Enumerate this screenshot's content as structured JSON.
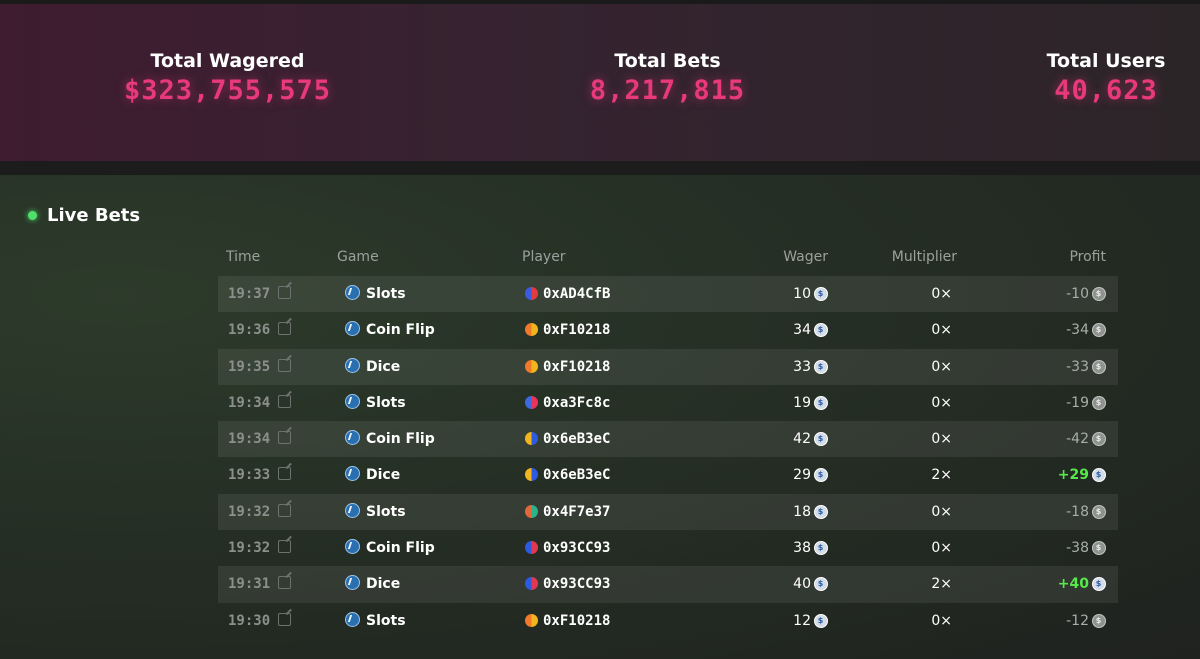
{
  "stats": {
    "total_wagered_label": "Total Wagered",
    "total_wagered_value": "$323,755,575",
    "total_bets_label": "Total Bets",
    "total_bets_value": "8,217,815",
    "total_users_label": "Total Users",
    "total_users_value": "40,623"
  },
  "live_bets": {
    "title": "Live Bets",
    "columns": {
      "time": "Time",
      "game": "Game",
      "player": "Player",
      "wager": "Wager",
      "multiplier": "Multiplier",
      "profit": "Profit"
    },
    "rows": [
      {
        "time": "19:37",
        "game": "Slots",
        "player": "0xAD4CfB",
        "wager": "10",
        "multiplier": "0×",
        "profit": "-10",
        "win": false,
        "avatar": [
          "#e23b3b",
          "#3b5be2"
        ]
      },
      {
        "time": "19:36",
        "game": "Coin Flip",
        "player": "0xF10218",
        "wager": "34",
        "multiplier": "0×",
        "profit": "-34",
        "win": false,
        "avatar": [
          "#f2b51e",
          "#f07a2a"
        ]
      },
      {
        "time": "19:35",
        "game": "Dice",
        "player": "0xF10218",
        "wager": "33",
        "multiplier": "0×",
        "profit": "-33",
        "win": false,
        "avatar": [
          "#f2b51e",
          "#f07a2a"
        ]
      },
      {
        "time": "19:34",
        "game": "Slots",
        "player": "0xa3Fc8c",
        "wager": "19",
        "multiplier": "0×",
        "profit": "-19",
        "win": false,
        "avatar": [
          "#e8345a",
          "#3b6ae2"
        ]
      },
      {
        "time": "19:34",
        "game": "Coin Flip",
        "player": "0x6eB3eC",
        "wager": "42",
        "multiplier": "0×",
        "profit": "-42",
        "win": false,
        "avatar": [
          "#2c5be0",
          "#f2b51e"
        ]
      },
      {
        "time": "19:33",
        "game": "Dice",
        "player": "0x6eB3eC",
        "wager": "29",
        "multiplier": "2×",
        "profit": "+29",
        "win": true,
        "avatar": [
          "#2c5be0",
          "#f2b51e"
        ]
      },
      {
        "time": "19:32",
        "game": "Slots",
        "player": "0x4F7e37",
        "wager": "18",
        "multiplier": "0×",
        "profit": "-18",
        "win": false,
        "avatar": [
          "#2bb38a",
          "#e2683b"
        ]
      },
      {
        "time": "19:32",
        "game": "Coin Flip",
        "player": "0x93CC93",
        "wager": "38",
        "multiplier": "0×",
        "profit": "-38",
        "win": false,
        "avatar": [
          "#e2384f",
          "#2c5be0"
        ]
      },
      {
        "time": "19:31",
        "game": "Dice",
        "player": "0x93CC93",
        "wager": "40",
        "multiplier": "2×",
        "profit": "+40",
        "win": true,
        "avatar": [
          "#e2384f",
          "#2c5be0"
        ]
      },
      {
        "time": "19:30",
        "game": "Slots",
        "player": "0xF10218",
        "wager": "12",
        "multiplier": "0×",
        "profit": "-12",
        "win": false,
        "avatar": [
          "#f2b51e",
          "#f07a2a"
        ]
      }
    ]
  }
}
